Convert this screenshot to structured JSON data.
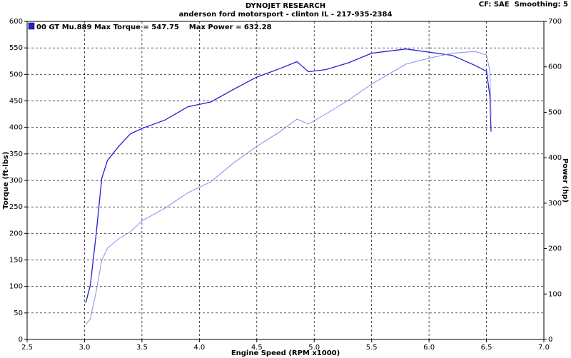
{
  "chart_data": {
    "type": "line",
    "title": "DYNOJET RESEARCH",
    "subtitle": "anderson ford motorsport - clinton IL - 217-935-2384",
    "settings_label": "CF: SAE  Smoothing: 5",
    "legend_text": "00 GT Mu.889 Max Torque = 547.75    Max Power = 632.28",
    "x_label": "Engine Speed (RPM x1000)",
    "y_label": "Torque (ft-lbs)",
    "y2_label": "Power (hp)",
    "x": [
      3.01,
      3.05,
      3.1,
      3.15,
      3.2,
      3.3,
      3.4,
      3.5,
      3.7,
      3.9,
      4.1,
      4.3,
      4.5,
      4.7,
      4.85,
      4.95,
      5.1,
      5.3,
      5.5,
      5.8,
      6.0,
      6.2,
      6.4,
      6.5,
      6.53,
      6.54
    ],
    "series": [
      {
        "name": "Torque",
        "color": "#2020d0",
        "values": [
          69,
          102,
          196,
          304,
          338,
          365,
          388,
          398,
          414,
          439,
          448,
          472,
          495,
          511,
          524,
          505,
          509,
          522,
          540,
          548,
          542,
          536,
          517,
          506,
          459,
          392
        ]
      },
      {
        "name": "Power",
        "color": "#8c8cf0",
        "axis": "y2",
        "values": [
          33,
          45,
          104,
          174,
          201,
          222,
          237,
          261,
          289,
          323,
          347,
          389,
          425,
          457,
          485,
          474,
          496,
          527,
          562,
          606,
          619,
          630,
          634,
          626,
          590,
          488
        ]
      }
    ],
    "xlim": [
      2.5,
      7.0
    ],
    "xticks": [
      2.5,
      {
        "value": 3,
        "label": "3.0"
      },
      3.5,
      {
        "value": 4,
        "label": "4.0"
      },
      4.5,
      {
        "value": 5,
        "label": "5.0"
      },
      5.5,
      {
        "value": 6,
        "label": "6.0"
      },
      6.5,
      {
        "value": 7,
        "label": "7.0"
      }
    ],
    "ylim": [
      0,
      600
    ],
    "yticks": [
      0,
      50,
      100,
      150,
      200,
      250,
      300,
      350,
      400,
      450,
      500,
      550,
      600
    ],
    "y2lim": [
      0,
      700
    ],
    "y2ticks": [
      0,
      100,
      200,
      300,
      400,
      500,
      600,
      700
    ],
    "grid": true
  }
}
